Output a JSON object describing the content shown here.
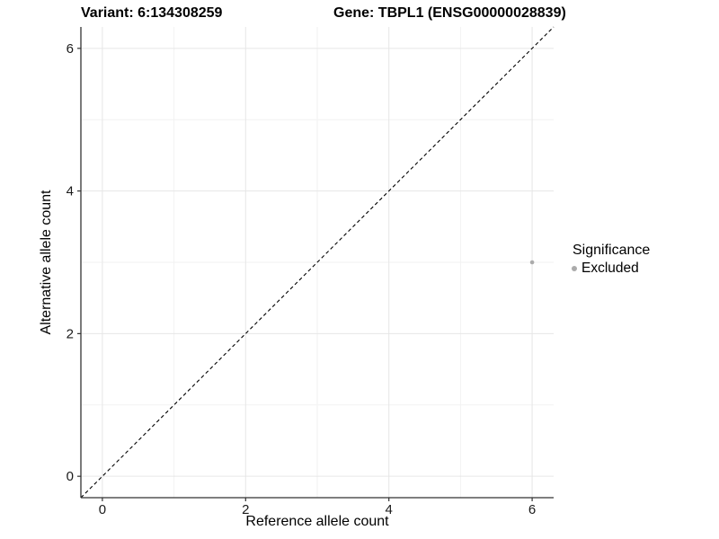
{
  "chart_data": {
    "type": "scatter",
    "titles": {
      "left": "Variant: 6:134308259",
      "right": "Gene: TBPL1 (ENSG00000028839)"
    },
    "xlabel": "Reference allele count",
    "ylabel": "Alternative allele count",
    "xlim": [
      -0.3,
      6.3
    ],
    "ylim": [
      -0.3,
      6.3
    ],
    "x_ticks": [
      0,
      2,
      4,
      6
    ],
    "y_ticks": [
      0,
      2,
      4,
      6
    ],
    "x_minor_ticks": [
      1,
      3,
      5
    ],
    "y_minor_ticks": [
      1,
      3,
      5
    ],
    "grid": "on",
    "points": [
      {
        "x": 6,
        "y": 3,
        "series": "Excluded"
      }
    ],
    "identity_line": {
      "style": "dashed",
      "x1": -0.3,
      "y1": -0.3,
      "x2": 6.3,
      "y2": 6.3
    },
    "legend": {
      "position": "right",
      "title": "Significance",
      "items": [
        {
          "label": "Excluded",
          "color": "#ababab"
        }
      ]
    },
    "colors": {
      "point": "#ababab",
      "grid_major": "#e6e6e6",
      "grid_minor": "#f2f2f2",
      "axis": "#333333",
      "tick_text": "#1a1a1a",
      "dashed_line": "#000000"
    }
  }
}
